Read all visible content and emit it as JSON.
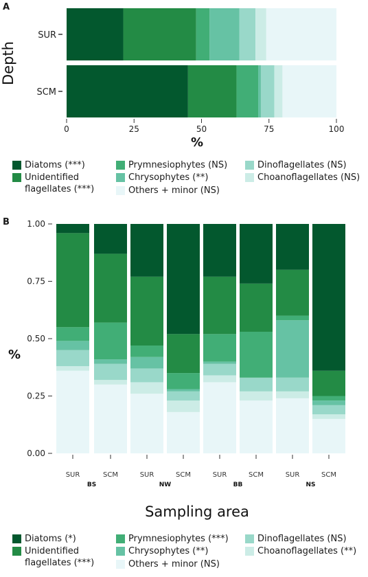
{
  "colors": {
    "diatoms": "#03582e",
    "unidentified_flagellates": "#238b45",
    "prymnesiophytes": "#41ae76",
    "chrysophytes": "#66c2a4",
    "dinoflagellates": "#99d8c9",
    "choanoflagellates": "#ccece6",
    "others_minor": "#e8f6f8"
  },
  "chart_data": [
    {
      "panel": "A",
      "type": "bar",
      "orientation": "horizontal",
      "stacked": true,
      "ylabel": "Depth",
      "xlabel": "%",
      "xlim": [
        0,
        100
      ],
      "xticks": [
        "0",
        "25",
        "50",
        "75",
        "100"
      ],
      "categories": [
        "SUR",
        "SCM"
      ],
      "series": [
        {
          "name": "Diatoms (***)",
          "key": "diatoms",
          "values": [
            21,
            45
          ]
        },
        {
          "name": "Unidentified flagellates (***)",
          "key": "unidentified_flagellates",
          "values": [
            27,
            18
          ]
        },
        {
          "name": "Prymnesiophytes (NS)",
          "key": "prymnesiophytes",
          "values": [
            5,
            8
          ]
        },
        {
          "name": "Chrysophytes (**)",
          "key": "chrysophytes",
          "values": [
            11,
            1
          ]
        },
        {
          "name": "Dinoflagellates (NS)",
          "key": "dinoflagellates",
          "values": [
            6,
            5
          ]
        },
        {
          "name": "Choanoflagellates (NS)",
          "key": "choanoflagellates",
          "values": [
            4,
            3
          ]
        },
        {
          "name": "Others + minor (NS)",
          "key": "others_minor",
          "values": [
            26,
            20
          ]
        }
      ],
      "legend": [
        {
          "key": "diatoms",
          "label": "Diatoms (***)"
        },
        {
          "key": "unidentified_flagellates",
          "label": "Unidentified\nflagellates (***)"
        },
        {
          "key": "prymnesiophytes",
          "label": "Prymnesiophytes (NS)"
        },
        {
          "key": "chrysophytes",
          "label": "Chrysophytes (**)"
        },
        {
          "key": "others_minor",
          "label": "Others + minor (NS)"
        },
        {
          "key": "dinoflagellates",
          "label": "Dinoflagellates (NS)"
        },
        {
          "key": "choanoflagellates",
          "label": "Choanoflagellates (NS)"
        }
      ]
    },
    {
      "panel": "B",
      "type": "bar",
      "orientation": "vertical",
      "stacked": true,
      "ylabel": "%",
      "xlabel": "Sampling area",
      "ylim": [
        0,
        1
      ],
      "yticks": [
        "0.00",
        "0.25",
        "0.50",
        "0.75",
        "1.00"
      ],
      "categories": [
        "SUR",
        "SCM",
        "SUR",
        "SCM",
        "SUR",
        "SCM",
        "SUR",
        "SCM"
      ],
      "groups": [
        "BS",
        "NW",
        "BB",
        "NS"
      ],
      "series_order_bottom_to_top": [
        "others_minor",
        "choanoflagellates",
        "dinoflagellates",
        "chrysophytes",
        "prymnesiophytes",
        "unidentified_flagellates",
        "diatoms"
      ],
      "series": [
        {
          "name": "Others + minor (NS)",
          "key": "others_minor",
          "values": [
            0.36,
            0.3,
            0.26,
            0.18,
            0.31,
            0.23,
            0.24,
            0.15
          ]
        },
        {
          "name": "Choanoflagellates (**)",
          "key": "choanoflagellates",
          "values": [
            0.02,
            0.02,
            0.05,
            0.05,
            0.03,
            0.04,
            0.03,
            0.02
          ]
        },
        {
          "name": "Dinoflagellates (NS)",
          "key": "dinoflagellates",
          "values": [
            0.07,
            0.07,
            0.06,
            0.04,
            0.05,
            0.06,
            0.06,
            0.04
          ]
        },
        {
          "name": "Chrysophytes (**)",
          "key": "chrysophytes",
          "values": [
            0.04,
            0.02,
            0.05,
            0.01,
            0.01,
            0.0,
            0.25,
            0.02
          ]
        },
        {
          "name": "Prymnesiophytes (***)",
          "key": "prymnesiophytes",
          "values": [
            0.06,
            0.16,
            0.05,
            0.07,
            0.12,
            0.2,
            0.02,
            0.02
          ]
        },
        {
          "name": "Unidentified flagellates (***)",
          "key": "unidentified_flagellates",
          "values": [
            0.41,
            0.3,
            0.3,
            0.17,
            0.25,
            0.21,
            0.2,
            0.11
          ]
        },
        {
          "name": "Diatoms (*)",
          "key": "diatoms",
          "values": [
            0.04,
            0.13,
            0.23,
            0.48,
            0.23,
            0.26,
            0.2,
            0.64
          ]
        }
      ],
      "legend": [
        {
          "key": "diatoms",
          "label": "Diatoms (*)"
        },
        {
          "key": "unidentified_flagellates",
          "label": "Unidentified\nflagellates (***)"
        },
        {
          "key": "prymnesiophytes",
          "label": "Prymnesiophytes (***)"
        },
        {
          "key": "chrysophytes",
          "label": "Chrysophytes (**)"
        },
        {
          "key": "others_minor",
          "label": "Others + minor (NS)"
        },
        {
          "key": "dinoflagellates",
          "label": "Dinoflagellates (NS)"
        },
        {
          "key": "choanoflagellates",
          "label": "Choanoflagellates (**)"
        }
      ]
    }
  ]
}
